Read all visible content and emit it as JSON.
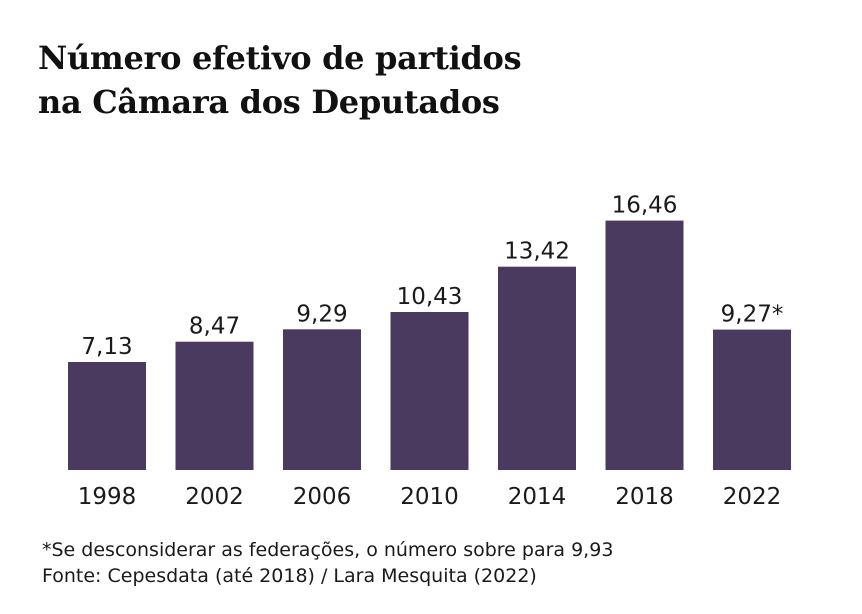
{
  "chart_data": {
    "type": "bar",
    "title_lines": [
      "Número efetivo de partidos",
      "na Câmara dos Deputados"
    ],
    "categories": [
      "1998",
      "2002",
      "2006",
      "2010",
      "2014",
      "2018",
      "2022"
    ],
    "values": [
      7.13,
      8.47,
      9.29,
      10.43,
      13.42,
      16.46,
      9.27
    ],
    "data_labels": [
      "7,13",
      "8,47",
      "9,29",
      "10,43",
      "13,42",
      "16,46",
      "9,27*"
    ],
    "xlabel": "",
    "ylabel": "",
    "grid": false,
    "legend": "none",
    "bar_color": "#4b3a5f"
  },
  "notes": {
    "footnote": "*Se desconsiderar as federações, o número sobre para 9,93",
    "source": "Fonte: Cepesdata (até 2018) / Lara Mesquita (2022)"
  }
}
